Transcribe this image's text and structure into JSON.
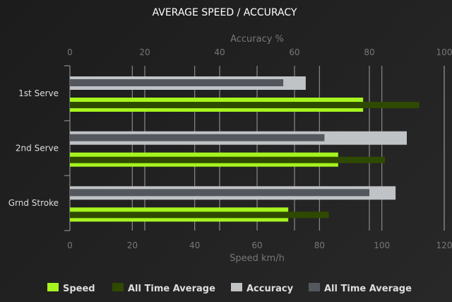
{
  "chart_data": {
    "type": "bar",
    "orientation": "horizontal",
    "title": "AVERAGE SPEED / ACCURACY",
    "categories": [
      "1st Serve",
      "2nd Serve",
      "Grnd Stroke"
    ],
    "x_axis_bottom": {
      "label": "Speed km/h",
      "range": [
        0,
        120
      ],
      "ticks": [
        0,
        20,
        40,
        60,
        80,
        100,
        120
      ]
    },
    "x_axis_top": {
      "label": "Accuracy %",
      "range": [
        0,
        100
      ],
      "ticks": [
        0,
        20,
        40,
        60,
        80,
        100
      ]
    },
    "grid": true,
    "legend_position": "bottom",
    "series": [
      {
        "name": "Speed",
        "axis": "bottom",
        "color": "#a6f51f",
        "values": [
          94,
          86,
          70
        ]
      },
      {
        "name": "All Time Average",
        "axis": "bottom",
        "color": "#2f4a00",
        "values": [
          112,
          101,
          83
        ]
      },
      {
        "name": "Accuracy",
        "axis": "top",
        "color": "#bfc3c6",
        "values": [
          63,
          90,
          87
        ]
      },
      {
        "name": "All Time Average",
        "axis": "top",
        "color": "#54585e",
        "values": [
          57,
          68,
          80
        ]
      }
    ]
  }
}
